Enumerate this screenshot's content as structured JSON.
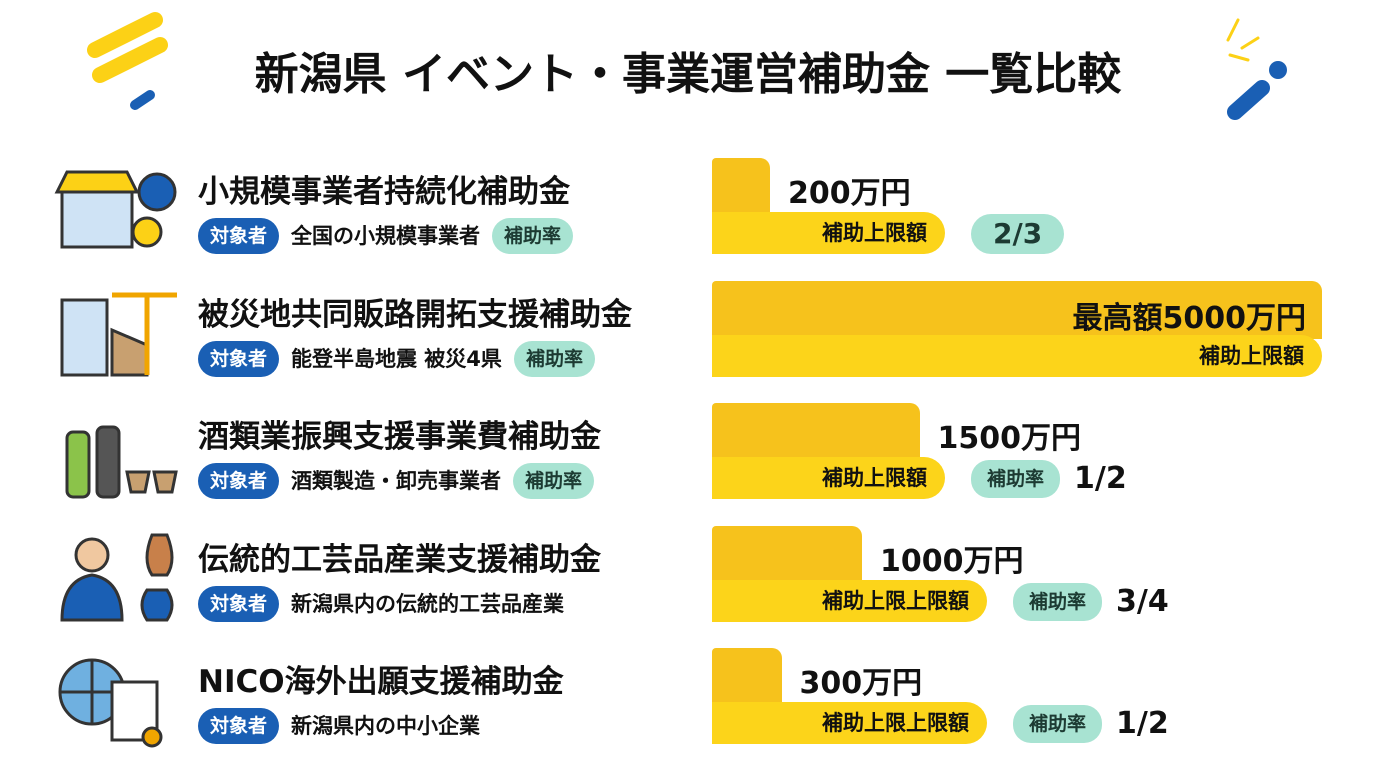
{
  "header": {
    "title": "新潟県 イベント・事業運営補助金 一覧比較"
  },
  "items": [
    {
      "name": "小規模事業者持続化補助金",
      "target_label": "対象者",
      "target": "全国の小規模事業者",
      "rate_label": "補助率",
      "amount": 200,
      "amount_label": "200万円",
      "bar_label": "補助上限額",
      "rate": "2/3"
    },
    {
      "name": "被災地共同販路開拓支援補助金",
      "target_label": "対象者",
      "target": "能登半島地震 被災4県",
      "rate_label": "補助率",
      "amount": 5000,
      "amount_label": "最高額5000万円",
      "bar_label": "補助上限額"
    },
    {
      "name": "酒類業振興支援事業費補助金",
      "target_label": "対象者",
      "target": "酒類製造・卸売事業者",
      "rate_label": "補助率",
      "amount": 1500,
      "amount_label": "1500万円",
      "bar_label": "補助上限額",
      "rate_label_right": "補助率",
      "rate": "1/2"
    },
    {
      "name": "伝統的工芸品産業支援補助金",
      "target_label": "対象者",
      "target": "新潟県内の伝統的工芸品産業",
      "amount": 1000,
      "amount_label": "1000万円",
      "bar_label": "補助上限上限額",
      "rate_label_right": "補助率",
      "rate": "3/4"
    },
    {
      "name": "NICO海外出願支援補助金",
      "target_label": "対象者",
      "target": "新潟県内の中小企業",
      "amount": 300,
      "amount_label": "300万円",
      "bar_label": "補助上限上限額",
      "rate_label_right": "補助率",
      "rate": "1/2"
    }
  ]
}
